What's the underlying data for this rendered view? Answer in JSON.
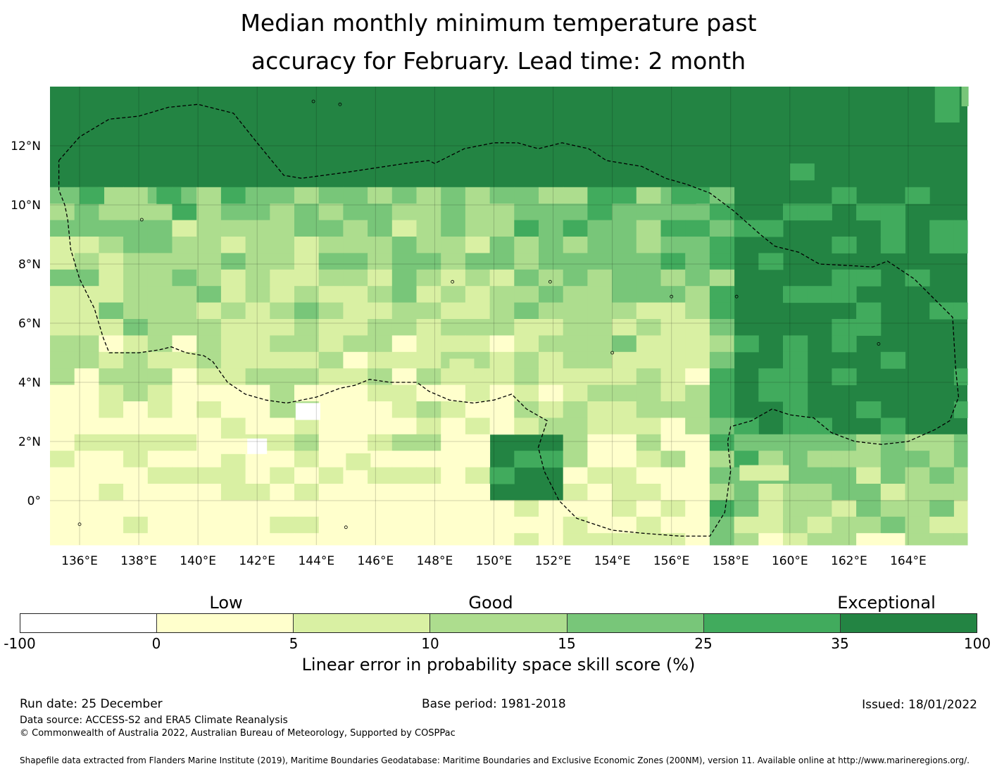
{
  "title": {
    "line1": "Median monthly minimum temperature past",
    "line2": "accuracy for February. Lead time: 2 month"
  },
  "map": {
    "lon_labels": [
      "136°E",
      "138°E",
      "140°E",
      "142°E",
      "144°E",
      "146°E",
      "148°E",
      "150°E",
      "152°E",
      "154°E",
      "156°E",
      "158°E",
      "160°E",
      "162°E",
      "164°E"
    ],
    "lat_labels": [
      "12°N",
      "10°N",
      "8°N",
      "6°N",
      "4°N",
      "2°N",
      "0°"
    ],
    "lon_range": [
      135.0,
      166.0
    ],
    "lat_range": [
      -1.5,
      14.0
    ],
    "boundary_style": "dashed black",
    "gridlines": true
  },
  "legend": {
    "categories": [
      "Low",
      "Good",
      "Exceptional"
    ],
    "ticks": [
      "-100",
      "0",
      "5",
      "10",
      "15",
      "25",
      "35",
      "100"
    ],
    "colors": [
      "#ffffff",
      "#ffffcc",
      "#d9f0a3",
      "#addd8e",
      "#78c679",
      "#41ab5d",
      "#238443"
    ],
    "label": "Linear error in probability space skill score (%)"
  },
  "footer": {
    "run_date": "Run date: 25 December",
    "base_period": "Base period: 1981-2018",
    "issued": "Issued: 18/01/2022",
    "data_source": "Data source: ACCESS-S2 and ERA5 Climate Reanalysis",
    "copyright": "© Commonwealth of Australia 2022, Australian Bureau of Meteorology, Supported by COSPPac",
    "shapefile": "Shapefile data extracted from Flanders Marine Institute (2019), Maritime Boundaries Geodatabase: Maritime Boundaries and Exclusive Economic Zones (200NM), version 11. Available online at http://www.marineregions.org/."
  }
}
